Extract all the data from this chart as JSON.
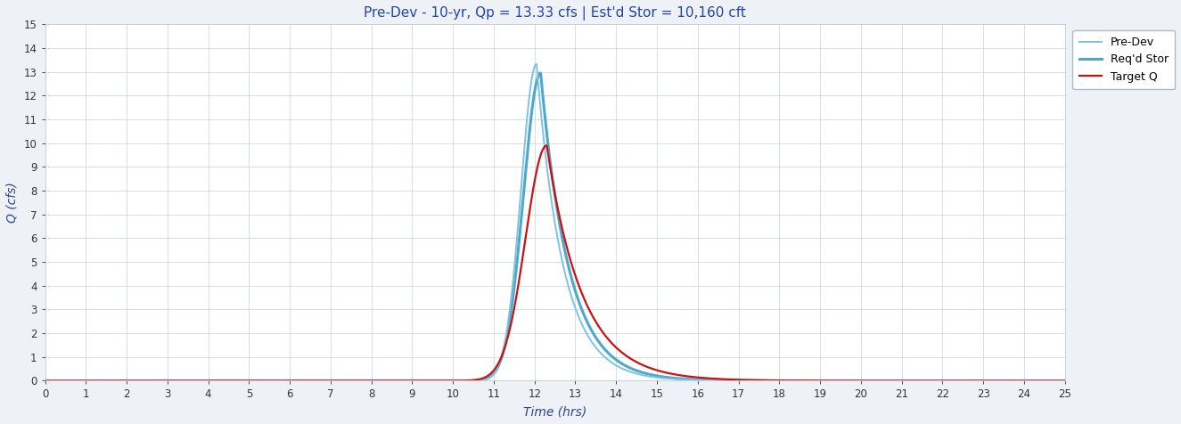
{
  "title": "Pre-Dev - 10-yr, Qp = 13.33 cfs | Est'd Stor = 10,160 cft",
  "xlabel": "Time (hrs)",
  "ylabel": "Q (cfs)",
  "xlim": [
    0,
    25
  ],
  "ylim": [
    0,
    15
  ],
  "xticks": [
    0,
    1,
    2,
    3,
    4,
    5,
    6,
    7,
    8,
    9,
    10,
    11,
    12,
    13,
    14,
    15,
    16,
    17,
    18,
    19,
    20,
    21,
    22,
    23,
    24,
    25
  ],
  "yticks": [
    0,
    1,
    2,
    3,
    4,
    5,
    6,
    7,
    8,
    9,
    10,
    11,
    12,
    13,
    14,
    15
  ],
  "fig_background": "#eef2f7",
  "plot_background": "#ffffff",
  "grid_color": "#c8d0dc",
  "pre_dev_color": "#7dc4e0",
  "req_stor_color": "#4da8cc",
  "target_q_color": "#cc1111",
  "pre_dev_lw": 1.4,
  "req_stor_lw": 2.2,
  "target_q_lw": 1.6,
  "legend_labels": [
    "Pre-Dev",
    "Req'd Stor",
    "Target Q"
  ],
  "title_color": "#2244aa",
  "axis_label_color": "#334488",
  "tick_label_color": "#333333",
  "pre_dev_peak_time": 12.05,
  "pre_dev_peak": 13.33,
  "req_stor_peak_time": 12.15,
  "req_stor_peak": 12.95,
  "target_q_peak_time": 12.3,
  "target_q_peak": 9.9
}
